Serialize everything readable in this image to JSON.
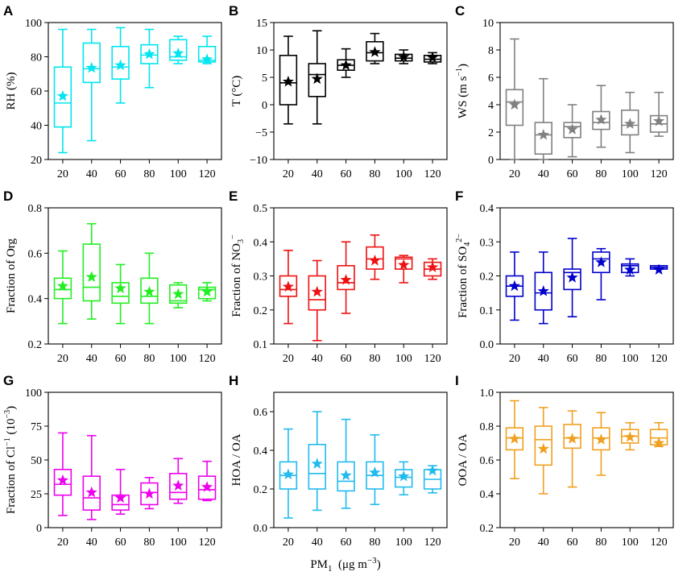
{
  "figure": {
    "xlabel": {
      "base": "PM",
      "sub": "1",
      "unit": "(μg m",
      "sup": "−3",
      "close": ")"
    }
  },
  "chart_data": [
    {
      "type": "box",
      "panel": "A",
      "ylabel": "RH (%)",
      "color": "#00e5ee",
      "categories": [
        "20",
        "40",
        "60",
        "80",
        "100",
        "120"
      ],
      "ylim": [
        20,
        100
      ],
      "yticks": [
        20,
        40,
        60,
        80,
        100
      ],
      "ytick_labels": [
        "20",
        "40",
        "60",
        "80",
        "100"
      ],
      "boxes": [
        {
          "min": 24,
          "q1": 39,
          "median": 53,
          "q3": 74,
          "max": 96,
          "mean": 57
        },
        {
          "min": 31,
          "q1": 65,
          "median": 73,
          "q3": 88,
          "max": 96,
          "mean": 73.5
        },
        {
          "min": 53,
          "q1": 67,
          "median": 74,
          "q3": 86,
          "max": 97,
          "mean": 75
        },
        {
          "min": 62,
          "q1": 76,
          "median": 81,
          "q3": 87,
          "max": 96,
          "mean": 81.5
        },
        {
          "min": 76,
          "q1": 78,
          "median": 80,
          "q3": 90,
          "max": 92,
          "mean": 82
        },
        {
          "min": 76,
          "q1": 77,
          "median": 78,
          "q3": 86,
          "max": 92,
          "mean": 78.5
        }
      ]
    },
    {
      "type": "box",
      "panel": "B",
      "ylabel": "T (°C)",
      "color": "#000000",
      "categories": [
        "20",
        "40",
        "60",
        "80",
        "100",
        "120"
      ],
      "ylim": [
        -10,
        15
      ],
      "yticks": [
        -10,
        -5,
        0,
        5,
        10,
        15
      ],
      "ytick_labels": [
        "−10",
        "−5",
        "0",
        "5",
        "10",
        "15"
      ],
      "boxes": [
        {
          "min": -3.5,
          "q1": 0,
          "median": 4,
          "q3": 9,
          "max": 12.5,
          "mean": 4.2
        },
        {
          "min": -3.5,
          "q1": 1.5,
          "median": 5.5,
          "q3": 7.5,
          "max": 13.5,
          "mean": 4.7
        },
        {
          "min": 5,
          "q1": 6.3,
          "median": 7.2,
          "q3": 8.2,
          "max": 10.2,
          "mean": 7.2
        },
        {
          "min": 7.5,
          "q1": 8,
          "median": 9.5,
          "q3": 11.5,
          "max": 13,
          "mean": 9.6
        },
        {
          "min": 7.5,
          "q1": 8,
          "median": 8.5,
          "q3": 9.2,
          "max": 10,
          "mean": 8.7
        },
        {
          "min": 7.5,
          "q1": 7.8,
          "median": 8.3,
          "q3": 9,
          "max": 9.5,
          "mean": 8.6
        }
      ]
    },
    {
      "type": "box",
      "panel": "C",
      "ylabel": "WS (m s⁻¹)",
      "ylabel_parts": {
        "base": "WS  (m s",
        "sup": "−1",
        "close": ")"
      },
      "color": "#808080",
      "categories": [
        "20",
        "40",
        "60",
        "80",
        "100",
        "120"
      ],
      "ylim": [
        0,
        10
      ],
      "yticks": [
        0,
        2,
        4,
        6,
        8,
        10
      ],
      "ytick_labels": [
        "0",
        "2",
        "4",
        "6",
        "8",
        "10"
      ],
      "boxes": [
        {
          "min": 0,
          "q1": 2.5,
          "median": 4.2,
          "q3": 5.1,
          "max": 8.8,
          "mean": 4
        },
        {
          "min": 0,
          "q1": 0.4,
          "median": 1.8,
          "q3": 2.7,
          "max": 5.9,
          "mean": 1.8
        },
        {
          "min": 0.2,
          "q1": 1.6,
          "median": 2.4,
          "q3": 2.7,
          "max": 4,
          "mean": 2.2
        },
        {
          "min": 0.9,
          "q1": 2.2,
          "median": 2.7,
          "q3": 3.5,
          "max": 5.4,
          "mean": 2.9
        },
        {
          "min": 0.5,
          "q1": 1.8,
          "median": 2.5,
          "q3": 3.6,
          "max": 4.9,
          "mean": 2.6
        },
        {
          "min": 1.7,
          "q1": 2,
          "median": 2.6,
          "q3": 3.2,
          "max": 4.9,
          "mean": 2.8
        }
      ]
    },
    {
      "type": "box",
      "panel": "D",
      "ylabel": "Fraction of Org",
      "color": "#22ee22",
      "categories": [
        "20",
        "40",
        "60",
        "80",
        "100",
        "120"
      ],
      "ylim": [
        0.2,
        0.8
      ],
      "yticks": [
        0.2,
        0.4,
        0.6,
        0.8
      ],
      "ytick_labels": [
        "0.2",
        "0.4",
        "0.6",
        "0.8"
      ],
      "boxes": [
        {
          "min": 0.29,
          "q1": 0.4,
          "median": 0.44,
          "q3": 0.49,
          "max": 0.61,
          "mean": 0.455
        },
        {
          "min": 0.31,
          "q1": 0.39,
          "median": 0.45,
          "q3": 0.64,
          "max": 0.73,
          "mean": 0.495
        },
        {
          "min": 0.29,
          "q1": 0.38,
          "median": 0.41,
          "q3": 0.47,
          "max": 0.55,
          "mean": 0.445
        },
        {
          "min": 0.29,
          "q1": 0.38,
          "median": 0.41,
          "q3": 0.49,
          "max": 0.6,
          "mean": 0.43
        },
        {
          "min": 0.36,
          "q1": 0.38,
          "median": 0.39,
          "q3": 0.46,
          "max": 0.47,
          "mean": 0.42
        },
        {
          "min": 0.39,
          "q1": 0.4,
          "median": 0.44,
          "q3": 0.45,
          "max": 0.47,
          "mean": 0.43
        }
      ]
    },
    {
      "type": "box",
      "panel": "E",
      "ylabel": "Fraction of NO₃⁻",
      "ylabel_parts": {
        "base": "Fraction of NO",
        "sub": "3",
        "sup": "−"
      },
      "color": "#ee1111",
      "categories": [
        "20",
        "40",
        "60",
        "80",
        "100",
        "120"
      ],
      "ylim": [
        0.1,
        0.5
      ],
      "yticks": [
        0.1,
        0.2,
        0.3,
        0.4,
        0.5
      ],
      "ytick_labels": [
        "0.1",
        "0.2",
        "0.3",
        "0.4",
        "0.5"
      ],
      "boxes": [
        {
          "min": 0.16,
          "q1": 0.24,
          "median": 0.26,
          "q3": 0.3,
          "max": 0.375,
          "mean": 0.268
        },
        {
          "min": 0.11,
          "q1": 0.2,
          "median": 0.23,
          "q3": 0.3,
          "max": 0.345,
          "mean": 0.253
        },
        {
          "min": 0.19,
          "q1": 0.26,
          "median": 0.28,
          "q3": 0.33,
          "max": 0.4,
          "mean": 0.288
        },
        {
          "min": 0.29,
          "q1": 0.32,
          "median": 0.35,
          "q3": 0.385,
          "max": 0.42,
          "mean": 0.345
        },
        {
          "min": 0.28,
          "q1": 0.32,
          "median": 0.35,
          "q3": 0.355,
          "max": 0.36,
          "mean": 0.332
        },
        {
          "min": 0.29,
          "q1": 0.3,
          "median": 0.32,
          "q3": 0.34,
          "max": 0.35,
          "mean": 0.325
        }
      ]
    },
    {
      "type": "box",
      "panel": "F",
      "ylabel": "Fraction of SO₄²⁻",
      "ylabel_parts": {
        "base": "Fraction of SO",
        "sub": "4",
        "sup": "2−"
      },
      "color": "#0000cc",
      "categories": [
        "20",
        "40",
        "60",
        "80",
        "100",
        "120"
      ],
      "ylim": [
        0.0,
        0.4
      ],
      "yticks": [
        0.0,
        0.1,
        0.2,
        0.3,
        0.4
      ],
      "ytick_labels": [
        "0.0",
        "0.1",
        "0.2",
        "0.3",
        "0.4"
      ],
      "boxes": [
        {
          "min": 0.07,
          "q1": 0.14,
          "median": 0.17,
          "q3": 0.2,
          "max": 0.27,
          "mean": 0.17
        },
        {
          "min": 0.06,
          "q1": 0.1,
          "median": 0.15,
          "q3": 0.21,
          "max": 0.27,
          "mean": 0.155
        },
        {
          "min": 0.08,
          "q1": 0.16,
          "median": 0.21,
          "q3": 0.22,
          "max": 0.31,
          "mean": 0.195
        },
        {
          "min": 0.13,
          "q1": 0.21,
          "median": 0.25,
          "q3": 0.27,
          "max": 0.28,
          "mean": 0.24
        },
        {
          "min": 0.2,
          "q1": 0.21,
          "median": 0.23,
          "q3": 0.235,
          "max": 0.25,
          "mean": 0.218
        },
        {
          "min": 0.22,
          "q1": 0.22,
          "median": 0.225,
          "q3": 0.23,
          "max": 0.23,
          "mean": 0.218
        }
      ]
    },
    {
      "type": "box",
      "panel": "G",
      "ylabel": "Fraction of Cl⁻¹ (10⁻³)",
      "ylabel_parts": {
        "base": "Fraction of Cl",
        "sup": "−1",
        "mid": "  (10",
        "sup2": "−3",
        "close": ")"
      },
      "color": "#ee00ee",
      "categories": [
        "20",
        "40",
        "60",
        "80",
        "100",
        "120"
      ],
      "ylim": [
        0,
        100
      ],
      "yticks": [
        0,
        25,
        50,
        75,
        100
      ],
      "ytick_labels": [
        "0",
        "25",
        "50",
        "75",
        "100"
      ],
      "boxes": [
        {
          "min": 9,
          "q1": 24,
          "median": 32,
          "q3": 43,
          "max": 70,
          "mean": 35
        },
        {
          "min": 6,
          "q1": 13,
          "median": 22,
          "q3": 38,
          "max": 68,
          "mean": 26
        },
        {
          "min": 10,
          "q1": 13,
          "median": 17,
          "q3": 24,
          "max": 43,
          "mean": 22
        },
        {
          "min": 14,
          "q1": 17,
          "median": 26,
          "q3": 33,
          "max": 37,
          "mean": 25
        },
        {
          "min": 18,
          "q1": 21,
          "median": 26,
          "q3": 40,
          "max": 51,
          "mean": 31
        },
        {
          "min": 20,
          "q1": 21,
          "median": 28,
          "q3": 38,
          "max": 49,
          "mean": 30
        }
      ]
    },
    {
      "type": "box",
      "panel": "H",
      "ylabel": "HOA / OA",
      "color": "#22bbee",
      "categories": [
        "20",
        "40",
        "60",
        "80",
        "100",
        "120"
      ],
      "ylim": [
        0.0,
        0.7
      ],
      "yticks": [
        0.0,
        0.2,
        0.4,
        0.6
      ],
      "ytick_labels": [
        "0.0",
        "0.2",
        "0.4",
        "0.6"
      ],
      "boxes": [
        {
          "min": 0.05,
          "q1": 0.2,
          "median": 0.27,
          "q3": 0.34,
          "max": 0.51,
          "mean": 0.275
        },
        {
          "min": 0.09,
          "q1": 0.2,
          "median": 0.28,
          "q3": 0.43,
          "max": 0.6,
          "mean": 0.33
        },
        {
          "min": 0.1,
          "q1": 0.19,
          "median": 0.24,
          "q3": 0.34,
          "max": 0.56,
          "mean": 0.27
        },
        {
          "min": 0.12,
          "q1": 0.2,
          "median": 0.27,
          "q3": 0.34,
          "max": 0.48,
          "mean": 0.285
        },
        {
          "min": 0.17,
          "q1": 0.21,
          "median": 0.26,
          "q3": 0.3,
          "max": 0.34,
          "mean": 0.265
        },
        {
          "min": 0.18,
          "q1": 0.2,
          "median": 0.25,
          "q3": 0.3,
          "max": 0.32,
          "mean": 0.295
        }
      ]
    },
    {
      "type": "box",
      "panel": "I",
      "ylabel": "OOA / OA",
      "color": "#f0a020",
      "categories": [
        "20",
        "40",
        "60",
        "80",
        "100",
        "120"
      ],
      "ylim": [
        0.2,
        1.0
      ],
      "yticks": [
        0.2,
        0.4,
        0.6,
        0.8,
        1.0
      ],
      "ytick_labels": [
        "0.2",
        "0.4",
        "0.6",
        "0.8",
        "1.0"
      ],
      "boxes": [
        {
          "min": 0.49,
          "q1": 0.66,
          "median": 0.73,
          "q3": 0.79,
          "max": 0.95,
          "mean": 0.725
        },
        {
          "min": 0.4,
          "q1": 0.57,
          "median": 0.72,
          "q3": 0.8,
          "max": 0.91,
          "mean": 0.665
        },
        {
          "min": 0.44,
          "q1": 0.67,
          "median": 0.73,
          "q3": 0.81,
          "max": 0.89,
          "mean": 0.725
        },
        {
          "min": 0.51,
          "q1": 0.66,
          "median": 0.73,
          "q3": 0.79,
          "max": 0.88,
          "mean": 0.72
        },
        {
          "min": 0.66,
          "q1": 0.7,
          "median": 0.74,
          "q3": 0.78,
          "max": 0.82,
          "mean": 0.735
        },
        {
          "min": 0.68,
          "q1": 0.69,
          "median": 0.73,
          "q3": 0.78,
          "max": 0.82,
          "mean": 0.7
        }
      ]
    }
  ]
}
